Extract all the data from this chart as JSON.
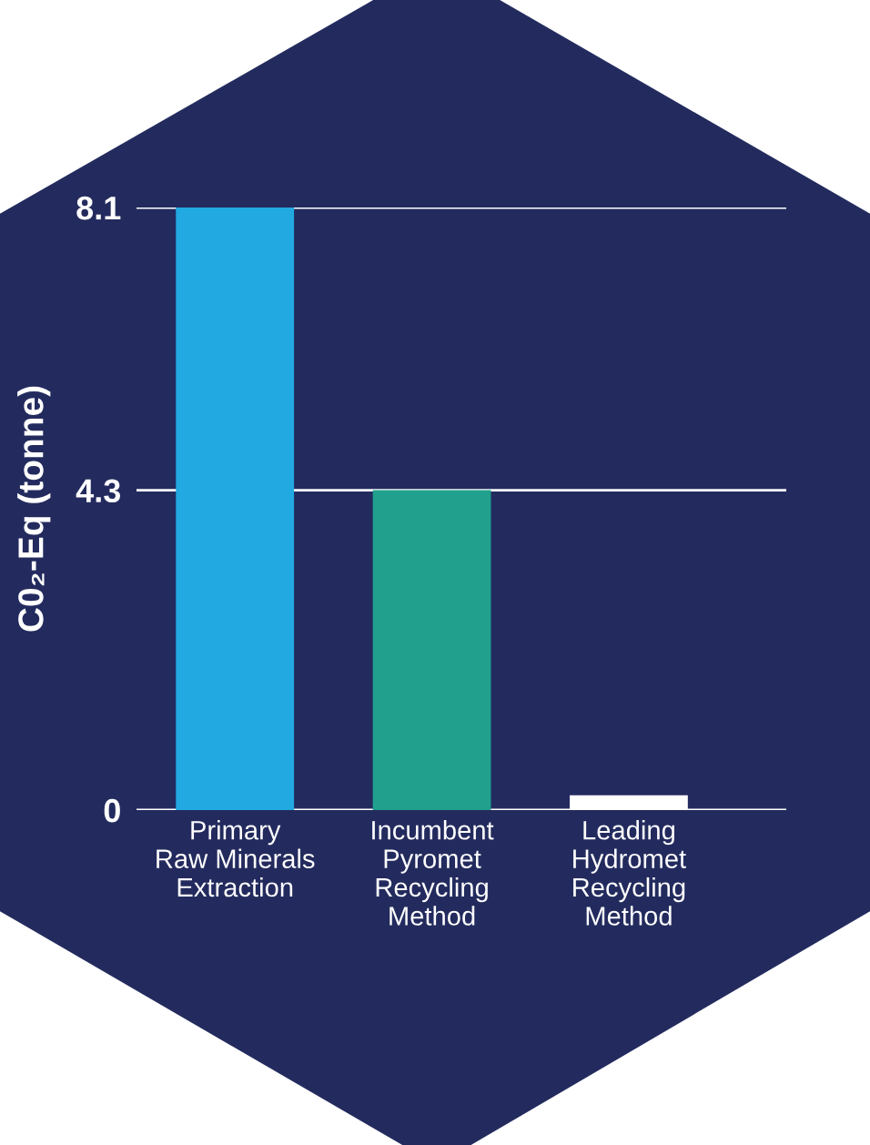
{
  "chart_data": {
    "type": "bar",
    "ylabel": "C0₂-Eq (tonne)",
    "categories": [
      "Primary\nRaw Minerals\nExtraction",
      "Incumbent\nPyromet\nRecycling\nMethod",
      "Leading\nHydromet\nRecycling\nMethod"
    ],
    "values": [
      8.1,
      4.3,
      0.2
    ],
    "colors": [
      "#22a9e1",
      "#21a08d",
      "#ffffff"
    ],
    "ylim": [
      0,
      8.1
    ],
    "yticks": [
      0,
      4.3,
      8.1
    ],
    "grid": "y"
  }
}
